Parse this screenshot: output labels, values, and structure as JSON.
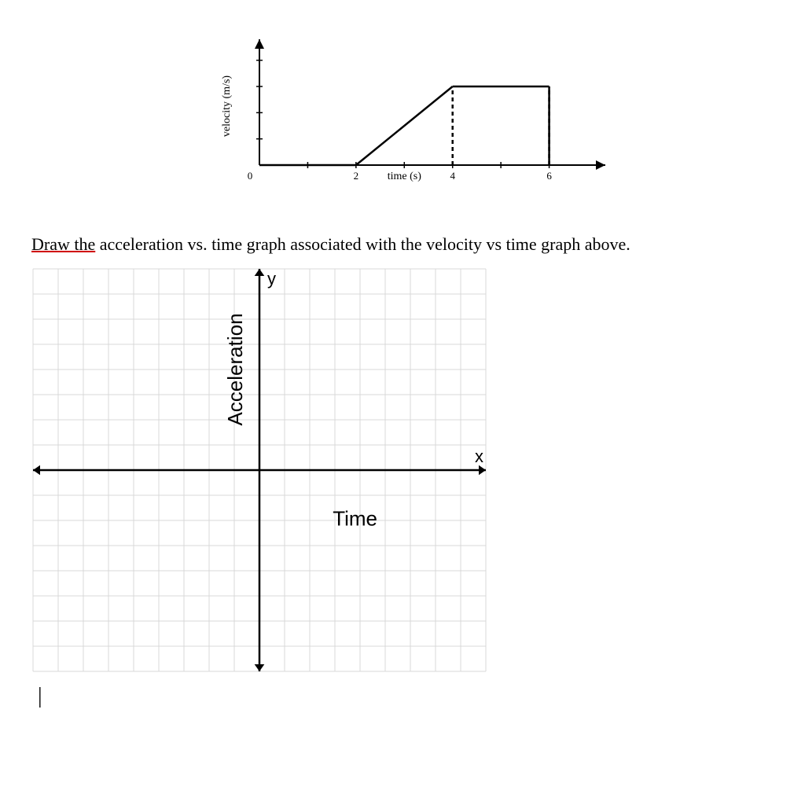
{
  "velocity_chart": {
    "type": "line",
    "x_label": "time (s)",
    "y_label": "velocity (m/s)",
    "origin_label": "0",
    "x_ticks": [
      0,
      1,
      2,
      3,
      4,
      5,
      6
    ],
    "x_tick_labels": {
      "2": "2",
      "4": "4",
      "6": "6"
    },
    "y_ticks": [
      0,
      1,
      2,
      3,
      4
    ],
    "xlim": [
      0,
      7
    ],
    "ylim": [
      0,
      4.5
    ],
    "segments": [
      {
        "from": [
          0,
          0
        ],
        "to": [
          2,
          0
        ]
      },
      {
        "from": [
          2,
          0
        ],
        "to": [
          4,
          3
        ]
      },
      {
        "from": [
          4,
          3
        ],
        "to": [
          6,
          3
        ]
      },
      {
        "from": [
          6,
          3
        ],
        "to": [
          6,
          0
        ]
      }
    ],
    "dashed_lines": [
      {
        "from": [
          4,
          0
        ],
        "to": [
          4,
          3
        ]
      },
      {
        "from": [
          6,
          0
        ],
        "to": [
          6,
          3
        ]
      }
    ],
    "line_color": "#000000",
    "line_width": 2.5,
    "dashed_pattern": "5,4",
    "axis_color": "#000000",
    "axis_width": 2,
    "label_fontsize": 14,
    "tick_fontsize": 13,
    "background_color": "#ffffff"
  },
  "prompt": {
    "underlined": "Draw the",
    "rest": " acceleration vs. time graph associated with the velocity vs time graph above.",
    "fontsize": 22,
    "underline_color": "#d00000"
  },
  "blank_grid": {
    "type": "blank-coordinate-grid",
    "x_axis_label": "x",
    "y_axis_label": "y",
    "vertical_title": "Acceleration",
    "horizontal_title": "Time",
    "grid_cells_x": 18,
    "grid_cells_y": 16,
    "origin_col": 9,
    "origin_row": 8,
    "cell_size": 32,
    "grid_color": "#d8d8d8",
    "grid_width": 1,
    "axis_color": "#000000",
    "axis_width": 2.5,
    "arrow_size": 9,
    "label_fontsize": 22,
    "title_fontsize": 26,
    "background_color": "#ffffff"
  },
  "cursor": {
    "text": "|"
  }
}
